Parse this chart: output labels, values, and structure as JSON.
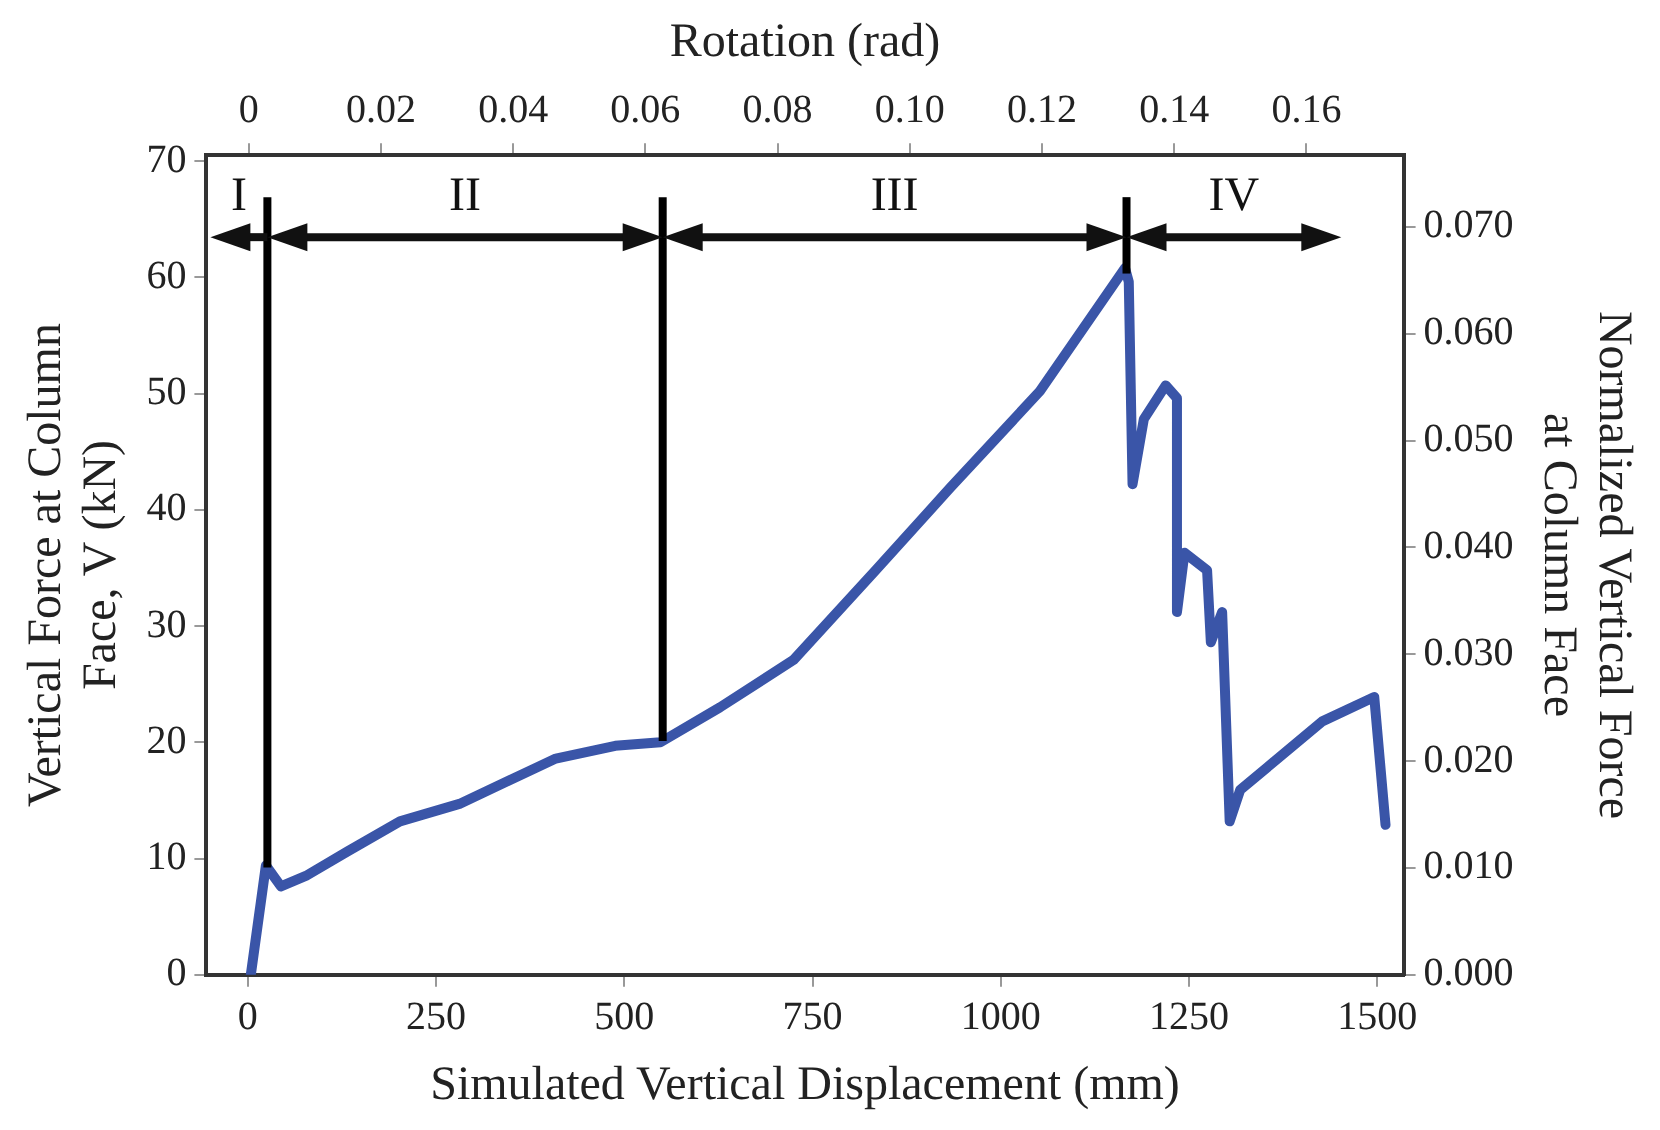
{
  "chart_data": {
    "type": "line",
    "xlabel": "Simulated Vertical Displacement (mm)",
    "ylabel": "Vertical Force at Column Face, V (kN)",
    "y2label": "Normalized Vertical Force at Column Face",
    "x2label": "Rotation (rad)",
    "x": [
      4,
      24,
      44,
      77,
      132,
      202,
      281,
      409,
      488,
      548,
      627,
      725,
      834,
      933,
      1052,
      1165,
      1170,
      1175,
      1190,
      1219,
      1234,
      1234,
      1244,
      1274,
      1279,
      1294,
      1304,
      1318,
      1427,
      1496,
      1511
    ],
    "series": [
      {
        "color": "#3a55a8",
        "values": [
          0,
          9.4,
          7.6,
          8.5,
          10.6,
          13.2,
          14.7,
          18.6,
          19.7,
          20.0,
          23.0,
          27.1,
          34.8,
          41.9,
          50.2,
          60.8,
          59.6,
          42.2,
          47.8,
          50.7,
          49.6,
          31.2,
          36.3,
          34.8,
          28.6,
          31.2,
          13.2,
          15.9,
          21.8,
          23.9,
          12.9
        ]
      }
    ],
    "xlim": [
      -55,
      1535
    ],
    "xticks": [
      0,
      250,
      500,
      750,
      1000,
      1250,
      1500
    ],
    "ylim": [
      0,
      70.5
    ],
    "yticks": [
      0,
      10,
      20,
      30,
      40,
      50,
      60,
      70
    ],
    "y2lim": [
      0,
      0.0767
    ],
    "y2ticks": [
      {
        "value": 0,
        "label": "0.000"
      },
      {
        "value": 0.01,
        "label": "0.010"
      },
      {
        "value": 0.02,
        "label": "0.020"
      },
      {
        "value": 0.03,
        "label": "0.030"
      },
      {
        "value": 0.04,
        "label": "0.040"
      },
      {
        "value": 0.05,
        "label": "0.050"
      },
      {
        "value": 0.06,
        "label": "0.060"
      },
      {
        "value": 0.07,
        "label": "0.070"
      }
    ],
    "x2lim": [
      -0.0064,
      0.1747
    ],
    "x2ticks": [
      0,
      0.02,
      0.04,
      0.06,
      0.08,
      {
        "value": 0.1,
        "label": "0.10"
      },
      0.12,
      0.14,
      0.16
    ],
    "ref_lines": [
      {
        "axis": "x",
        "value": 26,
        "color": "#000000"
      },
      {
        "axis": "x",
        "value": 551,
        "color": "#000000"
      },
      {
        "axis": "x",
        "value": 1167,
        "color": "#000000"
      }
    ],
    "annotations": [
      "I",
      "II",
      "III",
      "IV"
    ],
    "grid": false,
    "legend": false,
    "marker": "none",
    "line_style": "solid"
  }
}
